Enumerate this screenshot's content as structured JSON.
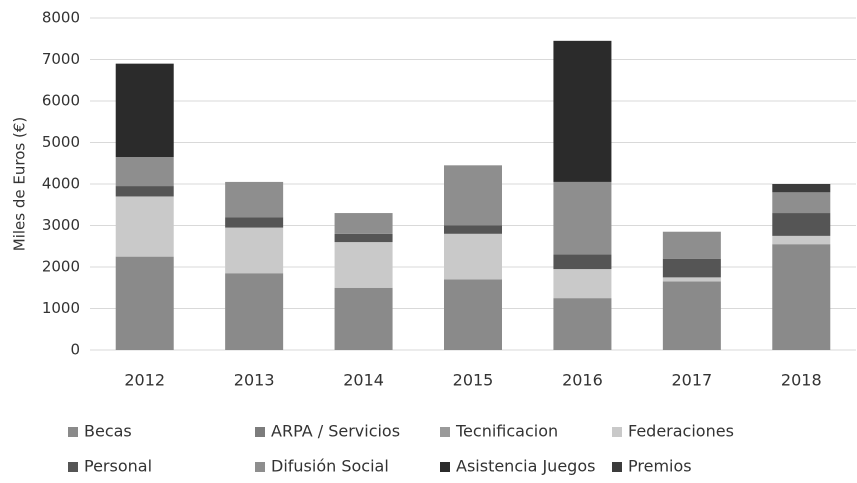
{
  "chart_data": {
    "type": "stacked_bar",
    "y_label": "Miles de Euros (€)",
    "categories": [
      "2012",
      "2013",
      "2014",
      "2015",
      "2016",
      "2017",
      "2018"
    ],
    "series": [
      {
        "name": "Becas",
        "color": "#8a8a8a",
        "values": [
          2250,
          1850,
          1500,
          1700,
          1250,
          1650,
          2550
        ]
      },
      {
        "name": "ARPA / Servicios",
        "color": "#7c7c7c",
        "values": [
          0,
          0,
          0,
          0,
          0,
          0,
          0
        ]
      },
      {
        "name": "Tecnificacion",
        "color": "#9a9a9a",
        "values": [
          0,
          0,
          0,
          0,
          0,
          0,
          0
        ]
      },
      {
        "name": "Federaciones",
        "color": "#c9c9c9",
        "values": [
          1450,
          1100,
          1100,
          1100,
          700,
          100,
          200
        ]
      },
      {
        "name": "Personal",
        "color": "#555555",
        "values": [
          250,
          250,
          200,
          200,
          350,
          450,
          550
        ]
      },
      {
        "name": "Difusión Social",
        "color": "#8e8e8e",
        "values": [
          700,
          850,
          500,
          1450,
          1750,
          650,
          500
        ]
      },
      {
        "name": "Asistencia Juegos",
        "color": "#2b2b2b",
        "values": [
          2250,
          0,
          0,
          0,
          3400,
          0,
          0
        ]
      },
      {
        "name": "Premios",
        "color": "#3c3c3c",
        "values": [
          0,
          0,
          0,
          0,
          0,
          0,
          200
        ]
      }
    ],
    "ylim": [
      0,
      8000
    ],
    "yticks": [
      0,
      1000,
      2000,
      3000,
      4000,
      5000,
      6000,
      7000,
      8000
    ],
    "grid": true
  }
}
